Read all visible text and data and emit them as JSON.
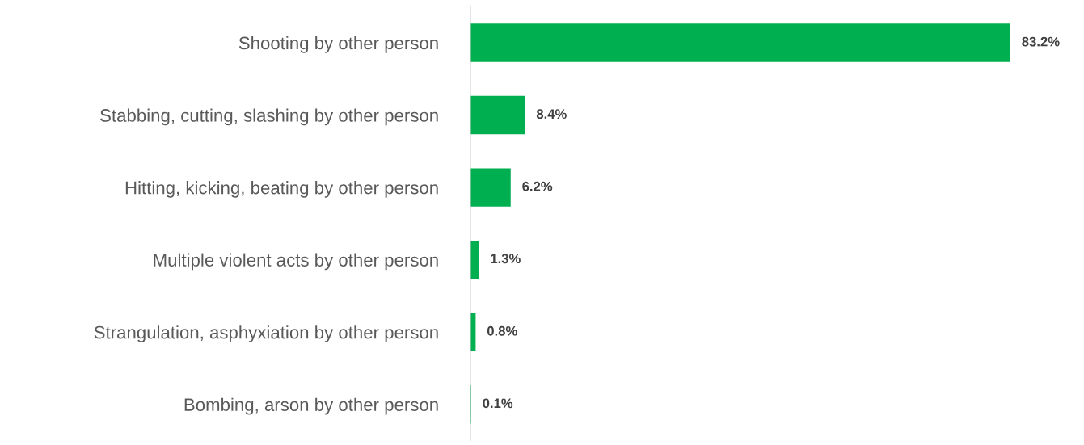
{
  "chart_data": {
    "type": "bar",
    "orientation": "horizontal",
    "categories": [
      "Shooting by other person",
      "Stabbing, cutting, slashing by other person",
      "Hitting, kicking, beating by other person",
      "Multiple violent acts by other person",
      "Strangulation, asphyxiation by other person",
      "Bombing, arson by other person"
    ],
    "values": [
      83.2,
      8.4,
      6.2,
      1.3,
      0.8,
      0.1
    ],
    "value_labels": [
      "83.2%",
      "8.4%",
      "6.2%",
      "1.3%",
      "0.8%",
      "0.1%"
    ],
    "color": "#00b050",
    "tick_labels": "y",
    "grid": false,
    "legend": false
  }
}
